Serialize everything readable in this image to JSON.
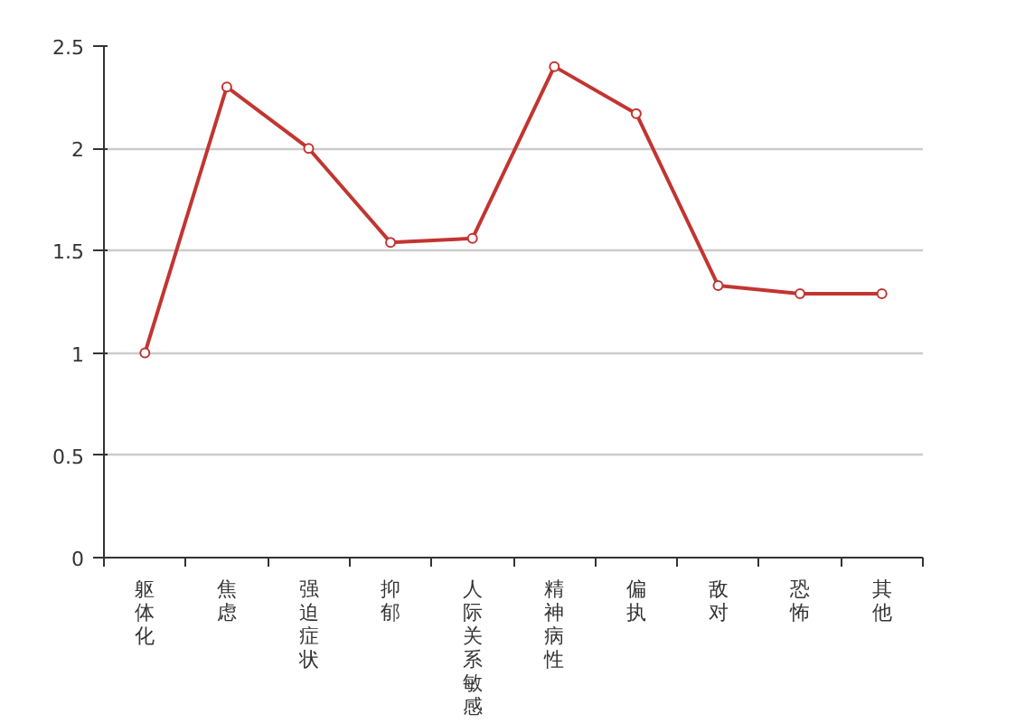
{
  "chart_data": {
    "type": "line",
    "categories": [
      "躯体化",
      "焦虑",
      "强迫症状",
      "抑郁",
      "人际关系敏感",
      "精神病性",
      "偏执",
      "敌对",
      "恐怖",
      "其他"
    ],
    "series": [
      {
        "color": "#c23531",
        "values": [
          1.0,
          2.3,
          2.0,
          1.54,
          1.56,
          2.4,
          2.17,
          1.33,
          1.29,
          1.29
        ]
      }
    ],
    "ylim": [
      0,
      2.5
    ],
    "yticks": [
      0,
      0.5,
      1,
      1.5,
      2,
      2.5
    ],
    "grid": "y",
    "marker": "circle"
  }
}
